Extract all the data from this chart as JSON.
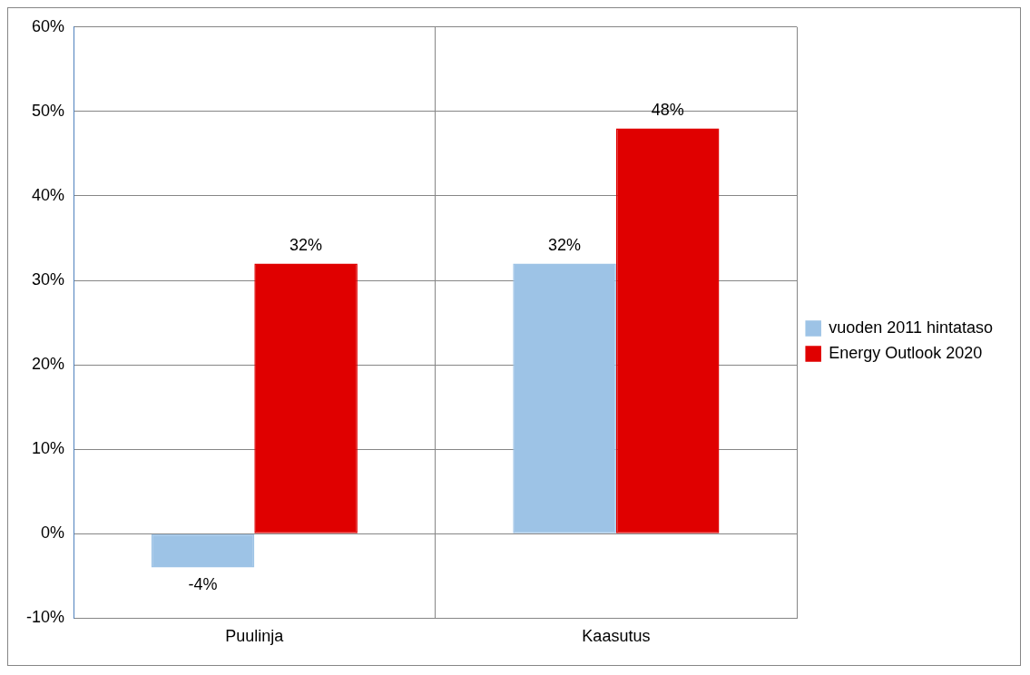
{
  "chart_data": {
    "type": "bar",
    "categories": [
      "Puulinja",
      "Kaasutus"
    ],
    "series": [
      {
        "name": "vuoden 2011 hintataso",
        "color": "#9dc3e6",
        "values": [
          -4,
          32
        ],
        "value_labels": [
          "-4%",
          "32%"
        ]
      },
      {
        "name": "Energy Outlook 2020",
        "color": "#e00000",
        "values": [
          32,
          48
        ],
        "value_labels": [
          "32%",
          "48%"
        ]
      }
    ],
    "ylim": [
      -10,
      60
    ],
    "yticks": [
      {
        "value": -10,
        "label": "-10%"
      },
      {
        "value": 0,
        "label": "0%"
      },
      {
        "value": 10,
        "label": "10%"
      },
      {
        "value": 20,
        "label": "20%"
      },
      {
        "value": 30,
        "label": "30%"
      },
      {
        "value": 40,
        "label": "40%"
      },
      {
        "value": 50,
        "label": "50%"
      },
      {
        "value": 60,
        "label": "60%"
      }
    ],
    "grid": true,
    "legend": "right"
  }
}
